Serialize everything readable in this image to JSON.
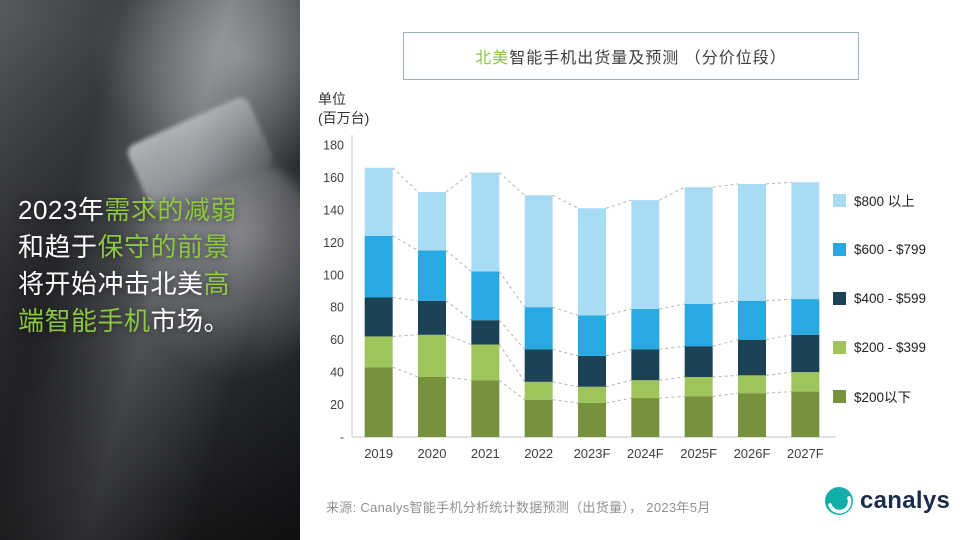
{
  "left_panel": {
    "highlight_color": "#8DC63F",
    "text_color": "#FFFFFF",
    "lines": [
      [
        {
          "text": "2023年",
          "highlight": false
        },
        {
          "text": "需求的减弱",
          "highlight": true
        }
      ],
      [
        {
          "text": "和趋于",
          "highlight": false
        },
        {
          "text": "保守的前景",
          "highlight": true
        }
      ],
      [
        {
          "text": "将开始冲击北美",
          "highlight": false
        },
        {
          "text": "高",
          "highlight": true
        }
      ],
      [
        {
          "text": "端智能手机",
          "highlight": true
        },
        {
          "text": "市场。",
          "highlight": false
        }
      ]
    ]
  },
  "chart": {
    "title_segments": [
      {
        "text": "北美",
        "highlight": true
      },
      {
        "text": "智能手机出货量及预测 （分价位段）",
        "highlight": false
      }
    ],
    "title_highlight_color": "#8DC63F",
    "unit_label_line1": "单位",
    "unit_label_line2": "(百万台)"
  },
  "chart_data": {
    "type": "bar",
    "stacked": true,
    "title": "北美智能手机出货量及预测（分价位段）",
    "ylabel": "单位(百万台)",
    "ylim": [
      0,
      180
    ],
    "ytick_step": 20,
    "ytick_labels": [
      "-",
      "20",
      "40",
      "60",
      "80",
      "100",
      "120",
      "140",
      "160",
      "180"
    ],
    "categories": [
      "2019",
      "2020",
      "2021",
      "2022",
      "2023F",
      "2024F",
      "2025F",
      "2026F",
      "2027F"
    ],
    "series": [
      {
        "name": "$200以下",
        "color": "#76923C",
        "values": [
          43,
          37,
          35,
          23,
          21,
          24,
          25,
          27,
          28
        ]
      },
      {
        "name": "$200 - $399",
        "color": "#9EC45B",
        "values": [
          19,
          26,
          22,
          11,
          10,
          11,
          12,
          11,
          12
        ]
      },
      {
        "name": "$400 - $599",
        "color": "#1B4255",
        "values": [
          24,
          21,
          15,
          20,
          19,
          19,
          19,
          22,
          23
        ]
      },
      {
        "name": "$600 - $799",
        "color": "#29A9E1",
        "values": [
          38,
          31,
          30,
          26,
          25,
          25,
          26,
          24,
          22
        ]
      },
      {
        "name": "$800 以上",
        "color": "#A8DCF4",
        "values": [
          42,
          36,
          61,
          69,
          66,
          67,
          72,
          72,
          72
        ]
      }
    ],
    "legend_order_top_to_bottom": [
      "$800 以上",
      "$600 - $799",
      "$400 - $599",
      "$200 - $399",
      "$200以下"
    ],
    "connector_lines": "dashed gray lines linking cumulative segment tops between adjacent bars",
    "legend_position": "right"
  },
  "footer": {
    "source": "来源: Canalys智能手机分析统计数据预测（出货量）， 2023年5月",
    "logo_text": "canalys"
  }
}
